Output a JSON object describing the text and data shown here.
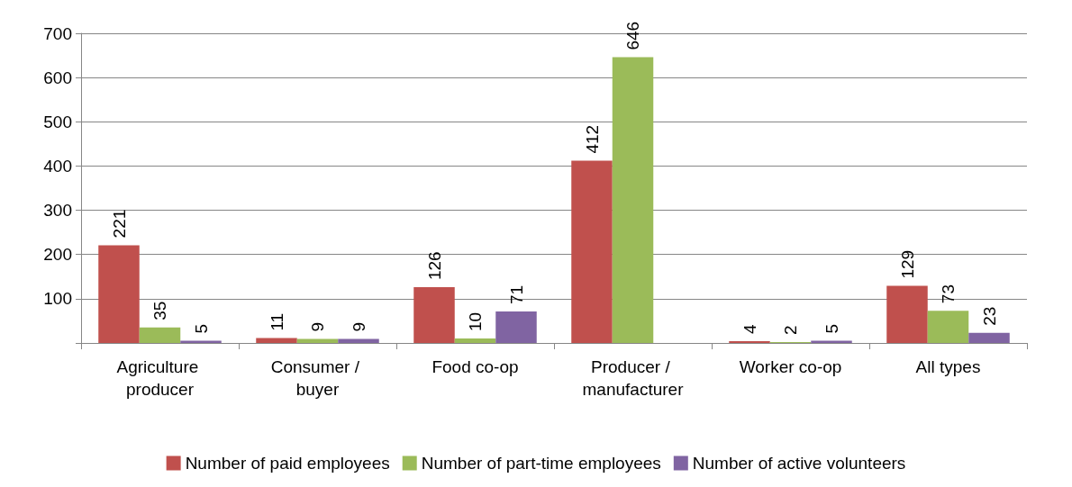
{
  "chart_data": {
    "type": "bar",
    "categories": [
      "Agriculture producer",
      "Consumer / buyer",
      "Food co-op",
      "Producer / manufacturer",
      "Worker co-op",
      "All types"
    ],
    "series": [
      {
        "name": "Number of paid employees",
        "color": "#c0504d",
        "values": [
          221,
          11,
          126,
          412,
          4,
          129
        ]
      },
      {
        "name": "Number of part-time employees",
        "color": "#9bbb59",
        "values": [
          35,
          9,
          10,
          646,
          2,
          73
        ]
      },
      {
        "name": "Number of active volunteers",
        "color": "#8064a2",
        "values": [
          5,
          9,
          71,
          null,
          5,
          23
        ]
      }
    ],
    "ylim": [
      0,
      700
    ],
    "yticks": [
      {
        "value": 0,
        "label": null
      },
      100,
      200,
      300,
      400,
      500,
      600,
      700
    ],
    "grid": "y",
    "legend": "bottom",
    "data_labels": true
  }
}
